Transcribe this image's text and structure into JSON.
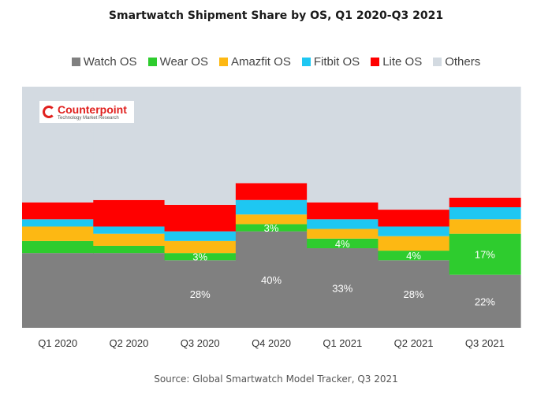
{
  "title": "Smartwatch Shipment Share by OS, Q1 2020-Q3 2021",
  "source": "Source: Global Smartwatch Model Tracker, Q3 2021",
  "logo": {
    "name": "Counterpoint",
    "tagline": "Technology Market Research"
  },
  "chart_data": {
    "type": "bar",
    "stacked": true,
    "percent_stacked": true,
    "title": "Smartwatch Shipment Share by OS, Q1 2020-Q3 2021",
    "xlabel": "",
    "ylabel": "",
    "ylim": [
      0,
      100
    ],
    "grid": false,
    "legend_position": "top",
    "categories": [
      "Q1 2020",
      "Q2 2020",
      "Q3 2020",
      "Q4 2020",
      "Q1 2021",
      "Q2 2021",
      "Q3 2021"
    ],
    "series": [
      {
        "name": "Watch OS",
        "color": "#808080",
        "values": [
          31,
          31,
          28,
          40,
          33,
          28,
          22
        ],
        "labels": [
          "",
          "",
          "28%",
          "40%",
          "33%",
          "28%",
          "22%"
        ]
      },
      {
        "name": "Wear OS",
        "color": "#2ecc2e",
        "values": [
          5,
          3,
          3,
          3,
          4,
          4,
          17
        ],
        "labels": [
          "",
          "",
          "3%",
          "3%",
          "4%",
          "4%",
          "17%"
        ]
      },
      {
        "name": "Amazfit OS",
        "color": "#fdb813",
        "values": [
          6,
          5,
          5,
          4,
          4,
          6,
          6
        ],
        "labels": [
          "",
          "",
          "",
          "",
          "",
          "",
          ""
        ]
      },
      {
        "name": "Fitbit OS",
        "color": "#1ec7f2",
        "values": [
          3,
          3,
          4,
          6,
          4,
          4,
          5
        ],
        "labels": [
          "",
          "",
          "",
          "",
          "",
          "",
          ""
        ]
      },
      {
        "name": "Lite OS",
        "color": "#ff0000",
        "values": [
          7,
          11,
          11,
          7,
          7,
          7,
          4
        ],
        "labels": [
          "",
          "",
          "",
          "",
          "",
          "",
          ""
        ]
      },
      {
        "name": "Others",
        "color": "#d3dae1",
        "values": [
          48,
          47,
          49,
          40,
          48,
          51,
          46
        ],
        "labels": [
          "",
          "",
          "",
          "",
          "",
          "",
          ""
        ]
      }
    ]
  }
}
